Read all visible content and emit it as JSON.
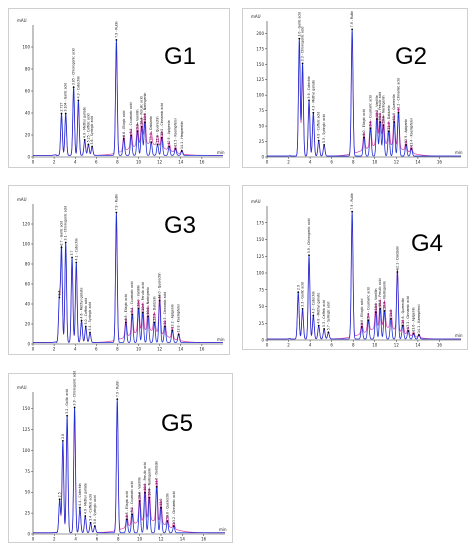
{
  "figure": {
    "panels": [
      {
        "label": "G1",
        "chart_data": {
          "type": "line",
          "ylabel": "mAU",
          "xlabel": "min",
          "xlim": [
            0,
            18
          ],
          "ylim": [
            0,
            120
          ],
          "xticks": [
            0,
            2,
            4,
            6,
            8,
            10,
            12,
            14,
            16
          ],
          "yticks": [
            0,
            20,
            40,
            60,
            80,
            100
          ],
          "series": [
            {
              "name": "",
              "color": "#1f2fd6"
            },
            {
              "name": "",
              "color": "#d63aa8"
            }
          ],
          "peaks": [
            {
              "rt": 2.7,
              "h": 38,
              "label": "2.727"
            },
            {
              "rt": 3.1,
              "h": 38,
              "label": "3.104 - Gallic acid"
            },
            {
              "rt": 3.85,
              "h": 62,
              "label": "3.85 - Chlorogenic acid"
            },
            {
              "rt": 4.3,
              "h": 50,
              "label": "4.3 - Catechin"
            },
            {
              "rt": 4.9,
              "h": 14,
              "label": "4.9 - Methyl gallate"
            },
            {
              "rt": 5.25,
              "h": 10,
              "label": "5.25 - Caffeic acid"
            },
            {
              "rt": 5.6,
              "h": 8,
              "label": "5.6 - Syringic acid"
            },
            {
              "rt": 7.9,
              "h": 105,
              "label": "7.9 - Rutin"
            },
            {
              "rt": 8.6,
              "h": 15,
              "label": "8.6 - Ellagic acid"
            },
            {
              "rt": 9.3,
              "h": 18,
              "label": "9.3 - Coumaric acid"
            },
            {
              "rt": 9.9,
              "h": 22,
              "label": "9.9 - Vanillin"
            },
            {
              "rt": 10.3,
              "h": 26,
              "label": "10.3 - Ferulic acid"
            },
            {
              "rt": 10.6,
              "h": 30,
              "label": "10.6 - Naringenin"
            },
            {
              "rt": 11.2,
              "h": 12,
              "label": "11.2 - Daidzein"
            },
            {
              "rt": 11.8,
              "h": 10,
              "label": "11.8 - Querectin"
            },
            {
              "rt": 12.2,
              "h": 16,
              "label": "12.2 - Cinnamic acid"
            },
            {
              "rt": 12.9,
              "h": 8,
              "label": "12.9 - Apigenin"
            },
            {
              "rt": 13.5,
              "h": 6,
              "label": "13.5 - Kaempferol"
            },
            {
              "rt": 14.1,
              "h": 4,
              "label": "14.1 - Hesperetin"
            }
          ]
        }
      },
      {
        "label": "G2",
        "chart_data": {
          "type": "line",
          "ylabel": "mAU",
          "xlabel": "min",
          "xlim": [
            0,
            18
          ],
          "ylim": [
            0,
            220
          ],
          "xticks": [
            0,
            2,
            4,
            6,
            8,
            10,
            12,
            14,
            16
          ],
          "yticks": [
            0,
            25,
            50,
            75,
            100,
            125,
            150,
            175,
            200
          ],
          "series": [
            {
              "name": "",
              "color": "#1f2fd6"
            },
            {
              "name": "",
              "color": "#d63aa8"
            }
          ],
          "peaks": [
            {
              "rt": 3.0,
              "h": 190,
              "label": "3.0 - Gallic acid"
            },
            {
              "rt": 3.3,
              "h": 150,
              "label": "3.3 - Chlorogenic acid"
            },
            {
              "rt": 3.9,
              "h": 90,
              "label": "3.9 - Catechin"
            },
            {
              "rt": 4.3,
              "h": 70,
              "label": "4.3 - Methyl gallate"
            },
            {
              "rt": 4.8,
              "h": 25,
              "label": "4.8 - Caffeic acid"
            },
            {
              "rt": 5.3,
              "h": 18,
              "label": "5.3 - Syringic acid"
            },
            {
              "rt": 7.9,
              "h": 205,
              "label": "7.9 - Rutin"
            },
            {
              "rt": 9.0,
              "h": 30,
              "label": "9.0 - Ellagic acid"
            },
            {
              "rt": 9.6,
              "h": 45,
              "label": "9.6 - Coumaric acid"
            },
            {
              "rt": 10.2,
              "h": 60,
              "label": "10.2 - Vanillin"
            },
            {
              "rt": 10.5,
              "h": 55,
              "label": "10.5 - Ferulic acid"
            },
            {
              "rt": 10.8,
              "h": 50,
              "label": "10.8 - Naringenin"
            },
            {
              "rt": 11.3,
              "h": 40,
              "label": "11.3 - Daidzein"
            },
            {
              "rt": 11.8,
              "h": 55,
              "label": "11.8 - Querectin"
            },
            {
              "rt": 12.2,
              "h": 70,
              "label": "12.2 - Cinnamic acid"
            },
            {
              "rt": 12.9,
              "h": 18,
              "label": "12.9 - Apigenin"
            },
            {
              "rt": 13.4,
              "h": 12,
              "label": "13.4 - Kaempferol"
            }
          ]
        }
      },
      {
        "label": "G3",
        "chart_data": {
          "type": "line",
          "ylabel": "mAU",
          "xlabel": "min",
          "xlim": [
            0,
            18
          ],
          "ylim": [
            0,
            140
          ],
          "xticks": [
            0,
            2,
            4,
            6,
            8,
            10,
            12,
            14,
            16
          ],
          "yticks": [
            0,
            20,
            40,
            60,
            80,
            100,
            120
          ],
          "series": [
            {
              "name": "",
              "color": "#1f2fd6"
            },
            {
              "name": "",
              "color": "#d63aa8"
            }
          ],
          "peaks": [
            {
              "rt": 2.5,
              "h": 45,
              "label": "2.5"
            },
            {
              "rt": 2.7,
              "h": 95,
              "label": "2.7 - Gallic acid"
            },
            {
              "rt": 3.1,
              "h": 100,
              "label": "3.1 - Chlorogenic acid"
            },
            {
              "rt": 3.7,
              "h": 85,
              "label": "3.7"
            },
            {
              "rt": 4.1,
              "h": 80,
              "label": "4.1 - Catechin"
            },
            {
              "rt": 4.6,
              "h": 22,
              "label": "4.6 - Methyl gallate"
            },
            {
              "rt": 5.0,
              "h": 16,
              "label": "5.0 - Caffeic acid"
            },
            {
              "rt": 5.4,
              "h": 10,
              "label": "5.4 - Syringic acid"
            },
            {
              "rt": 7.9,
              "h": 130,
              "label": "7.9 - Rutin"
            },
            {
              "rt": 8.8,
              "h": 20,
              "label": "8.8 - Ellagic acid"
            },
            {
              "rt": 9.4,
              "h": 28,
              "label": "9.4 - Coumaric acid"
            },
            {
              "rt": 10.0,
              "h": 34,
              "label": "10.0 - Vanillin"
            },
            {
              "rt": 10.4,
              "h": 30,
              "label": "10.4 - Ferulic acid"
            },
            {
              "rt": 10.9,
              "h": 26,
              "label": "10.9 - Naringenin"
            },
            {
              "rt": 11.5,
              "h": 20,
              "label": "11.5 - Daidzein"
            },
            {
              "rt": 12.0,
              "h": 42,
              "label": "12.0 - Querectin"
            },
            {
              "rt": 12.5,
              "h": 16,
              "label": "12.5 - Cinnamic acid"
            },
            {
              "rt": 13.2,
              "h": 12,
              "label": "13.2 - Apigenin"
            },
            {
              "rt": 13.8,
              "h": 8,
              "label": "13.8 - Kaempferol"
            }
          ]
        }
      },
      {
        "label": "G4",
        "chart_data": {
          "type": "line",
          "ylabel": "mAU",
          "xlabel": "min",
          "xlim": [
            0,
            18
          ],
          "ylim": [
            0,
            200
          ],
          "xticks": [
            0,
            2,
            4,
            6,
            8,
            10,
            12,
            14,
            16
          ],
          "yticks": [
            0,
            25,
            50,
            75,
            100,
            125,
            150,
            175
          ],
          "series": [
            {
              "name": "",
              "color": "#1f2fd6"
            },
            {
              "name": "",
              "color": "#d63aa8"
            }
          ],
          "peaks": [
            {
              "rt": 2.9,
              "h": 70,
              "label": "2.9"
            },
            {
              "rt": 3.3,
              "h": 45,
              "label": "3.3 - Gallic acid"
            },
            {
              "rt": 3.9,
              "h": 125,
              "label": "3.9 - Chlorogenic acid"
            },
            {
              "rt": 4.3,
              "h": 35,
              "label": "4.3 - Catechin"
            },
            {
              "rt": 4.8,
              "h": 20,
              "label": "4.8 - Methyl gallate"
            },
            {
              "rt": 5.3,
              "h": 15,
              "label": "5.3 - Caffeic acid"
            },
            {
              "rt": 5.7,
              "h": 10,
              "label": "5.7 - Syringic acid"
            },
            {
              "rt": 7.9,
              "h": 190,
              "label": "7.9 - Rutin"
            },
            {
              "rt": 8.8,
              "h": 18,
              "label": "8.8 - Ellagic acid"
            },
            {
              "rt": 9.4,
              "h": 28,
              "label": "9.4 - Coumaric acid"
            },
            {
              "rt": 10.1,
              "h": 40,
              "label": "10.1 - Vanillin"
            },
            {
              "rt": 10.5,
              "h": 45,
              "label": "10.5 - Ferulic acid"
            },
            {
              "rt": 10.9,
              "h": 42,
              "label": "10.9 - Naringenin"
            },
            {
              "rt": 11.5,
              "h": 30,
              "label": "11.5"
            },
            {
              "rt": 12.1,
              "h": 100,
              "label": "12.1 - Daidzein"
            },
            {
              "rt": 12.6,
              "h": 20,
              "label": "12.6 - Querectin"
            },
            {
              "rt": 13.1,
              "h": 12,
              "label": "13.1 - Cinnamic acid"
            },
            {
              "rt": 13.6,
              "h": 8,
              "label": "13.6 - Apigenin"
            },
            {
              "rt": 14.1,
              "h": 6,
              "label": "14.1 - Kaempferol"
            }
          ]
        }
      },
      {
        "label": "G5",
        "chart_data": {
          "type": "line",
          "ylabel": "mAU",
          "xlabel": "min",
          "xlim": [
            0,
            18
          ],
          "ylim": [
            0,
            170
          ],
          "xticks": [
            0,
            2,
            4,
            6,
            8,
            10,
            12,
            14,
            16
          ],
          "yticks": [
            0,
            25,
            50,
            75,
            100,
            125,
            150
          ],
          "series": [
            {
              "name": "",
              "color": "#1f2fd6"
            },
            {
              "name": "",
              "color": "#d63aa8"
            }
          ],
          "peaks": [
            {
              "rt": 2.5,
              "h": 40,
              "label": "2.5"
            },
            {
              "rt": 2.8,
              "h": 110,
              "label": "2.8"
            },
            {
              "rt": 3.2,
              "h": 140,
              "label": "3.2 - Gallic acid"
            },
            {
              "rt": 3.9,
              "h": 150,
              "label": "3.9 - Chlorogenic acid"
            },
            {
              "rt": 4.4,
              "h": 30,
              "label": "4.4 - Catechin"
            },
            {
              "rt": 4.9,
              "h": 20,
              "label": "4.9 - Methyl gallate"
            },
            {
              "rt": 5.4,
              "h": 12,
              "label": "5.4 - Caffeic acid"
            },
            {
              "rt": 5.8,
              "h": 8,
              "label": "5.8 - Syringic acid"
            },
            {
              "rt": 7.9,
              "h": 160,
              "label": "7.9 - Rutin"
            },
            {
              "rt": 8.8,
              "h": 16,
              "label": "8.8 - Ellagic acid"
            },
            {
              "rt": 9.3,
              "h": 22,
              "label": "9.3 - Coumaric acid"
            },
            {
              "rt": 10.0,
              "h": 38,
              "label": "10.0 - Vanillin"
            },
            {
              "rt": 10.5,
              "h": 48,
              "label": "10.5 - Ferulic acid"
            },
            {
              "rt": 10.9,
              "h": 42,
              "label": "10.9 - Naringenin"
            },
            {
              "rt": 11.6,
              "h": 55,
              "label": "11.6 - Daidzein"
            },
            {
              "rt": 12.0,
              "h": 30,
              "label": "12.0"
            },
            {
              "rt": 12.6,
              "h": 14,
              "label": "12.6 - Querectin"
            },
            {
              "rt": 13.2,
              "h": 8,
              "label": "13.2 - Cinnamic acid"
            }
          ]
        }
      }
    ]
  }
}
